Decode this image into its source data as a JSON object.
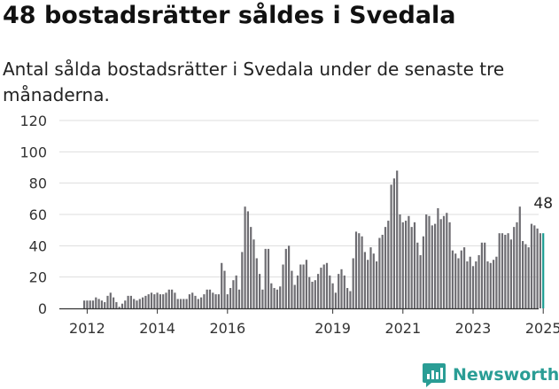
{
  "header": {
    "title": "48 bostadsrätter såldes i Svedala",
    "subtitle": "Antal sålda bostadsrätter i Svedala under de senaste tre månaderna."
  },
  "brand": {
    "name": "Newsworthy",
    "icon": "newsworthy-logo-icon",
    "color": "#2a9d95"
  },
  "colors": {
    "bar": "#6e6d72",
    "highlight": "#1c9c92",
    "grid": "#dddddd"
  },
  "chart_data": {
    "type": "bar",
    "title": "48 bostadsrätter såldes i Svedala",
    "subtitle": "Antal sålda bostadsrätter i Svedala under de senaste tre månaderna.",
    "x_start": "2011-12",
    "x_end": "2025-08",
    "x_tick_labels": [
      "2012",
      "2014",
      "2016",
      "2019",
      "2021",
      "2023",
      "2025"
    ],
    "y_ticks": [
      0,
      20,
      40,
      60,
      80,
      100,
      120
    ],
    "ylim": [
      0,
      120
    ],
    "grid": "horizontal",
    "annotation": {
      "label": "48",
      "value": 48
    },
    "values": [
      5,
      5,
      5,
      5,
      7,
      6,
      5,
      4,
      8,
      10,
      7,
      4,
      1,
      3,
      5,
      8,
      8,
      6,
      5,
      6,
      7,
      8,
      9,
      10,
      9,
      10,
      9,
      9,
      10,
      12,
      12,
      10,
      6,
      6,
      6,
      6,
      9,
      10,
      8,
      6,
      7,
      9,
      12,
      12,
      10,
      9,
      9,
      29,
      24,
      9,
      13,
      18,
      21,
      12,
      36,
      65,
      62,
      52,
      44,
      32,
      22,
      12,
      38,
      38,
      16,
      13,
      12,
      14,
      28,
      38,
      40,
      24,
      15,
      21,
      28,
      28,
      31,
      20,
      17,
      18,
      22,
      26,
      28,
      29,
      21,
      16,
      10,
      22,
      25,
      21,
      13,
      11,
      32,
      49,
      48,
      46,
      36,
      31,
      39,
      35,
      30,
      45,
      47,
      52,
      56,
      79,
      83,
      88,
      60,
      55,
      56,
      59,
      52,
      55,
      42,
      34,
      46,
      60,
      59,
      53,
      54,
      64,
      57,
      59,
      61,
      55,
      37,
      35,
      32,
      37,
      39,
      30,
      33,
      27,
      30,
      34,
      42,
      42,
      30,
      29,
      31,
      33,
      48,
      48,
      47,
      48,
      44,
      52,
      55,
      65,
      43,
      41,
      39,
      54,
      53,
      51,
      48,
      48
    ]
  }
}
